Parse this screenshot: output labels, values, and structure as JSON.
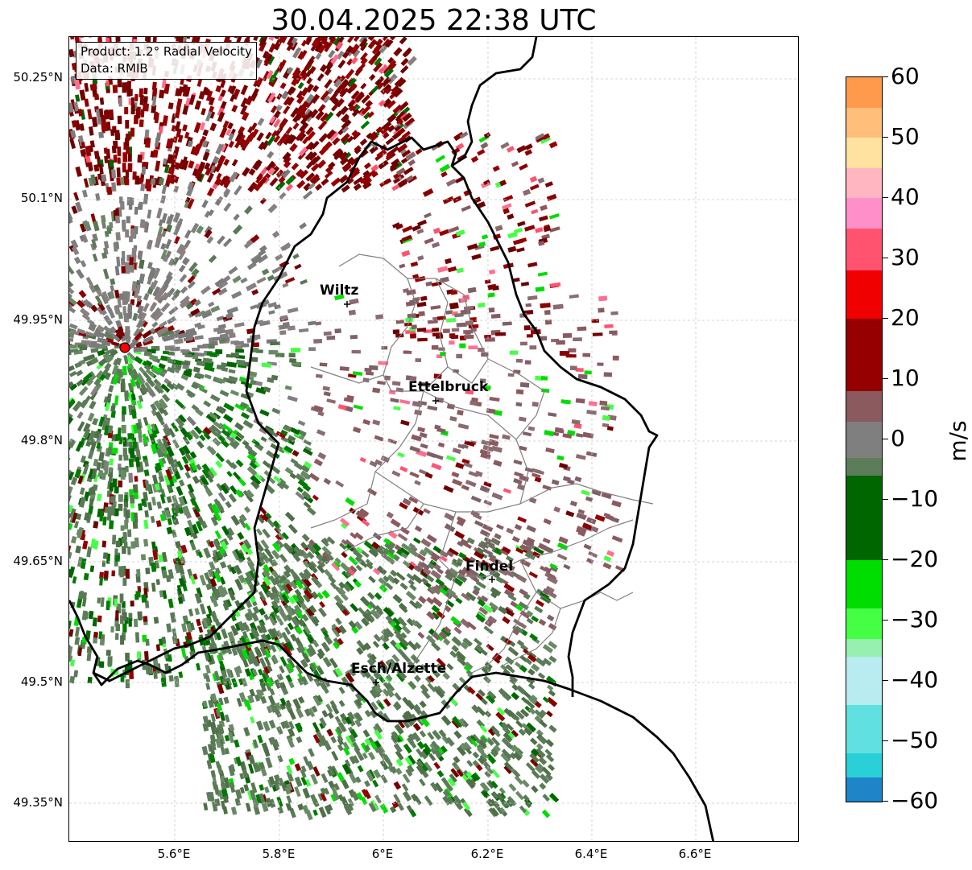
{
  "title": "30.04.2025 22:38 UTC",
  "info_box": {
    "product": "Product: 1.2° Radial Velocity",
    "data": "Data: RMIB"
  },
  "lat_labels": [
    "50.25°N",
    "50.1°N",
    "49.95°N",
    "49.8°N",
    "49.65°N",
    "49.5°N",
    "49.35°N"
  ],
  "lon_labels": [
    "5.6°E",
    "5.8°E",
    "6°E",
    "6.2°E",
    "6.4°E",
    "6.6°E"
  ],
  "cities": [
    {
      "name": "Wiltz"
    },
    {
      "name": "Ettelbruck"
    },
    {
      "name": "Findel"
    },
    {
      "name": "Esch/Alzette"
    }
  ],
  "colorbar": {
    "unit": "m/s",
    "ticks": [
      "60",
      "50",
      "40",
      "30",
      "20",
      "10",
      "0",
      "−10",
      "−20",
      "−30",
      "−40",
      "−50",
      "−60"
    ],
    "range": [
      -60,
      60
    ],
    "colors": [
      {
        "from": 55,
        "to": 60,
        "color": "#ff9a4d"
      },
      {
        "from": 50,
        "to": 55,
        "color": "#ffbe7a"
      },
      {
        "from": 45,
        "to": 50,
        "color": "#ffe2a0"
      },
      {
        "from": 40,
        "to": 45,
        "color": "#ffb6c1"
      },
      {
        "from": 35,
        "to": 40,
        "color": "#ff8fc8"
      },
      {
        "from": 28,
        "to": 35,
        "color": "#ff5370"
      },
      {
        "from": 20,
        "to": 28,
        "color": "#f00000"
      },
      {
        "from": 8,
        "to": 20,
        "color": "#960000"
      },
      {
        "from": 3,
        "to": 8,
        "color": "#8a5a5f"
      },
      {
        "from": -3,
        "to": 3,
        "color": "#7f7f7f"
      },
      {
        "from": -6,
        "to": -3,
        "color": "#5d7d5a"
      },
      {
        "from": -20,
        "to": -6,
        "color": "#006600"
      },
      {
        "from": -28,
        "to": -20,
        "color": "#00dd00"
      },
      {
        "from": -33,
        "to": -28,
        "color": "#44ff44"
      },
      {
        "from": -36,
        "to": -33,
        "color": "#98f0b0"
      },
      {
        "from": -44,
        "to": -36,
        "color": "#b8ecf0"
      },
      {
        "from": -52,
        "to": -44,
        "color": "#60e0e0"
      },
      {
        "from": -56,
        "to": -52,
        "color": "#2ad0d8"
      },
      {
        "from": -60,
        "to": -56,
        "color": "#1f84c8"
      }
    ]
  },
  "colors": {
    "inbound_red": "#8b0000",
    "outbound_green": "#5a7a55",
    "radar_marker": "#ff0000"
  }
}
